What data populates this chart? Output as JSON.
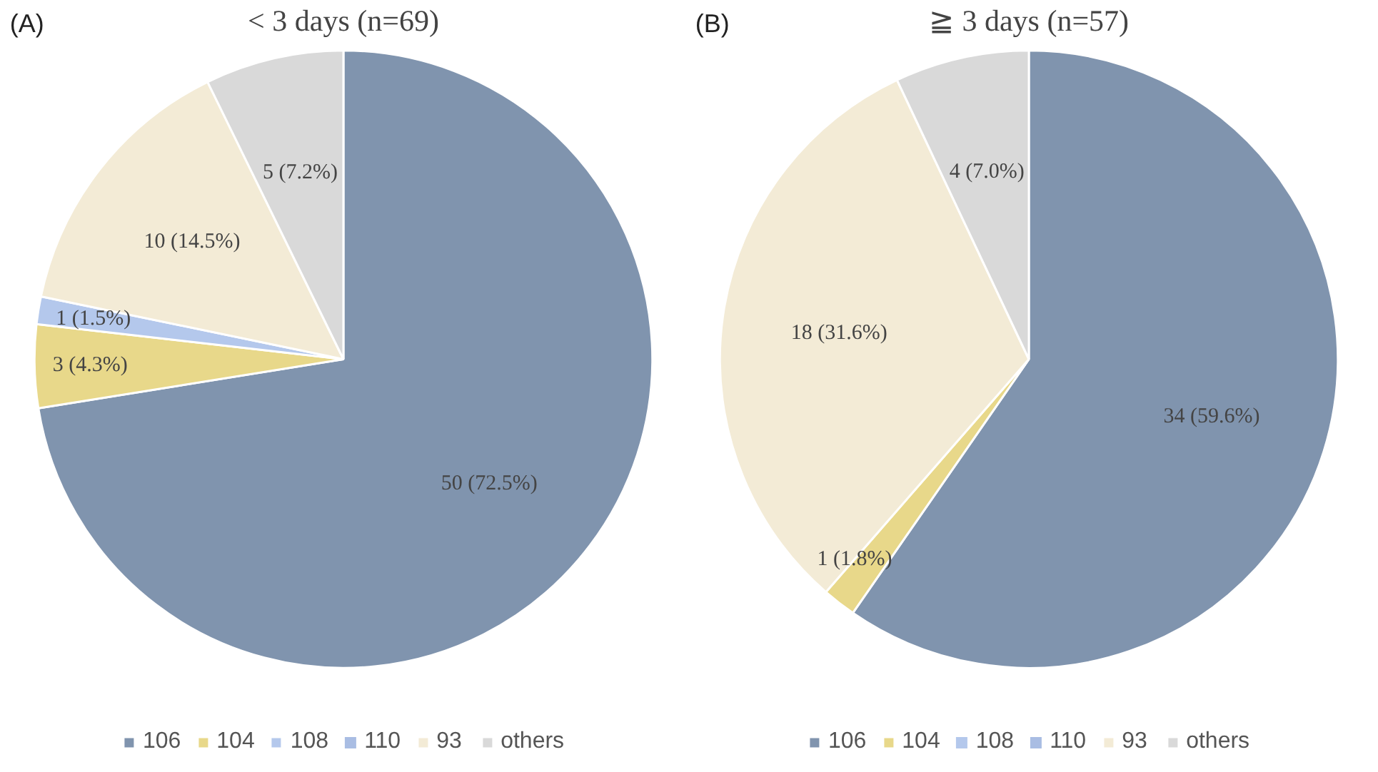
{
  "chart_data": [
    {
      "type": "pie",
      "title": "< 3 days (n=69)",
      "annotations": [
        "(A)"
      ],
      "categories": [
        "106",
        "104",
        "108",
        "110",
        "93",
        "others"
      ],
      "values": [
        50,
        3,
        1,
        0,
        10,
        5
      ],
      "value_labels": [
        "50 (72.5%)",
        "3 (4.3%)",
        "1 (1.5%)",
        null,
        "10 (14.5%)",
        "5 (7.2%)"
      ],
      "colors": [
        "#8094ae",
        "#e8d88a",
        "#b4c8ec",
        "#a9bde3",
        "#f3ebd6",
        "#d9d9d9"
      ],
      "legend": "bottom"
    },
    {
      "type": "pie",
      "title": "≧ 3 days (n=57)",
      "annotations": [
        "(B)"
      ],
      "categories": [
        "106",
        "104",
        "108",
        "110",
        "93",
        "others"
      ],
      "values": [
        34,
        1,
        0,
        0,
        18,
        4
      ],
      "value_labels": [
        "34 (59.6%)",
        "1 (1.8%)",
        null,
        null,
        "18 (31.6%)",
        "4 (7.0%)"
      ],
      "colors": [
        "#8094ae",
        "#e8d88a",
        "#b4c8ec",
        "#a9bde3",
        "#f3ebd6",
        "#d9d9d9"
      ],
      "legend": "bottom"
    }
  ]
}
